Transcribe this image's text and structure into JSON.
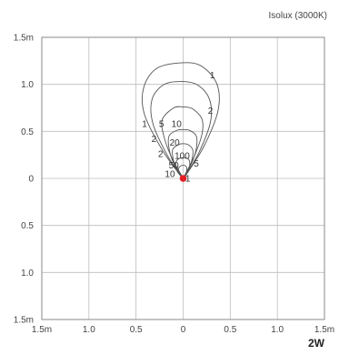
{
  "title": "Isolux (3000K)",
  "footer": "2W",
  "chart_data": {
    "type": "contour",
    "title": "Isolux (3000K)",
    "subtitle": "2W",
    "xlim": [
      -1.5,
      1.5
    ],
    "ylim": [
      -1.5,
      1.5
    ],
    "grid": true,
    "x_ticks": [
      {
        "v": -1.5,
        "label": "1.5m"
      },
      {
        "v": -1.0,
        "label": "1.0"
      },
      {
        "v": -0.5,
        "label": "0.5"
      },
      {
        "v": 0,
        "label": "0"
      },
      {
        "v": 0.5,
        "label": "0.5"
      },
      {
        "v": 1.0,
        "label": "1.0"
      },
      {
        "v": 1.5,
        "label": "1.5m"
      }
    ],
    "y_ticks": [
      {
        "v": 1.5,
        "label": "1.5m"
      },
      {
        "v": 1.0,
        "label": "1.0"
      },
      {
        "v": 0.5,
        "label": "0.5"
      },
      {
        "v": 0,
        "label": "0"
      },
      {
        "v": -0.5,
        "label": "0.5"
      },
      {
        "v": -1.0,
        "label": "1.0"
      },
      {
        "v": -1.5,
        "label": "1.5m"
      }
    ],
    "light_source": {
      "x": 0,
      "y": 0,
      "color": "#e31e24"
    },
    "contours": [
      {
        "level": "1",
        "points": [
          [
            -0.02,
            0.02
          ],
          [
            -0.22,
            0.3
          ],
          [
            -0.41,
            0.68
          ],
          [
            -0.42,
            0.96
          ],
          [
            -0.28,
            1.17
          ],
          [
            0.0,
            1.23
          ],
          [
            0.2,
            1.19
          ],
          [
            0.36,
            1.0
          ],
          [
            0.37,
            0.72
          ],
          [
            0.22,
            0.34
          ],
          [
            0.02,
            0.02
          ]
        ]
      },
      {
        "level": "2",
        "points": [
          [
            -0.02,
            0.02
          ],
          [
            -0.17,
            0.25
          ],
          [
            -0.32,
            0.58
          ],
          [
            -0.33,
            0.84
          ],
          [
            -0.2,
            1.0
          ],
          [
            0.0,
            1.03
          ],
          [
            0.16,
            0.99
          ],
          [
            0.28,
            0.84
          ],
          [
            0.29,
            0.6
          ],
          [
            0.17,
            0.28
          ],
          [
            0.02,
            0.02
          ]
        ]
      },
      {
        "level": "5",
        "points": [
          [
            -0.01,
            0.02
          ],
          [
            -0.13,
            0.24
          ],
          [
            -0.21,
            0.47
          ],
          [
            -0.22,
            0.63
          ],
          [
            -0.1,
            0.75
          ],
          [
            0.0,
            0.76
          ],
          [
            0.1,
            0.74
          ],
          [
            0.2,
            0.63
          ],
          [
            0.2,
            0.47
          ],
          [
            0.12,
            0.24
          ],
          [
            0.01,
            0.02
          ]
        ]
      },
      {
        "level": "10",
        "points": [
          [
            -0.01,
            0.02
          ],
          [
            -0.1,
            0.16
          ],
          [
            -0.15,
            0.32
          ],
          [
            -0.15,
            0.45
          ],
          [
            -0.07,
            0.51
          ],
          [
            0.0,
            0.52
          ],
          [
            0.07,
            0.51
          ],
          [
            0.14,
            0.45
          ],
          [
            0.14,
            0.32
          ],
          [
            0.09,
            0.16
          ],
          [
            0.01,
            0.02
          ]
        ]
      },
      {
        "level": "20",
        "points": [
          [
            -0.01,
            0.01
          ],
          [
            -0.08,
            0.12
          ],
          [
            -0.11,
            0.23
          ],
          [
            -0.11,
            0.31
          ],
          [
            -0.05,
            0.36
          ],
          [
            0.0,
            0.37
          ],
          [
            0.05,
            0.36
          ],
          [
            0.1,
            0.31
          ],
          [
            0.1,
            0.23
          ],
          [
            0.07,
            0.12
          ],
          [
            0.01,
            0.01
          ]
        ]
      },
      {
        "level": "50",
        "points": [
          [
            -0.01,
            0.01
          ],
          [
            -0.06,
            0.07
          ],
          [
            -0.08,
            0.14
          ],
          [
            -0.06,
            0.2
          ],
          [
            0.0,
            0.22
          ],
          [
            0.06,
            0.2
          ],
          [
            0.07,
            0.14
          ],
          [
            0.05,
            0.07
          ],
          [
            0.01,
            0.01
          ]
        ]
      },
      {
        "level": "100",
        "points": [
          [
            -0.01,
            0.01
          ],
          [
            -0.04,
            0.05
          ],
          [
            -0.05,
            0.1
          ],
          [
            -0.03,
            0.13
          ],
          [
            0.0,
            0.14
          ],
          [
            0.03,
            0.13
          ],
          [
            0.04,
            0.1
          ],
          [
            0.03,
            0.05
          ],
          [
            0.01,
            0.01
          ]
        ]
      }
    ],
    "contour_labels": [
      {
        "text": "1",
        "x": 0.31,
        "y": 1.1
      },
      {
        "text": "2",
        "x": 0.29,
        "y": 0.72
      },
      {
        "text": "1",
        "x": -0.41,
        "y": 0.58
      },
      {
        "text": "5",
        "x": -0.23,
        "y": 0.58
      },
      {
        "text": "10",
        "x": -0.07,
        "y": 0.58
      },
      {
        "text": "2",
        "x": -0.31,
        "y": 0.42
      },
      {
        "text": "20",
        "x": -0.09,
        "y": 0.38
      },
      {
        "text": "2",
        "x": -0.24,
        "y": 0.26
      },
      {
        "text": "100",
        "x": -0.01,
        "y": 0.24
      },
      {
        "text": "50",
        "x": -0.1,
        "y": 0.14
      },
      {
        "text": "5",
        "x": 0.14,
        "y": 0.16
      },
      {
        "text": "10",
        "x": -0.14,
        "y": 0.05
      },
      {
        "text": "1",
        "x": 0.05,
        "y": 0.0
      }
    ]
  }
}
